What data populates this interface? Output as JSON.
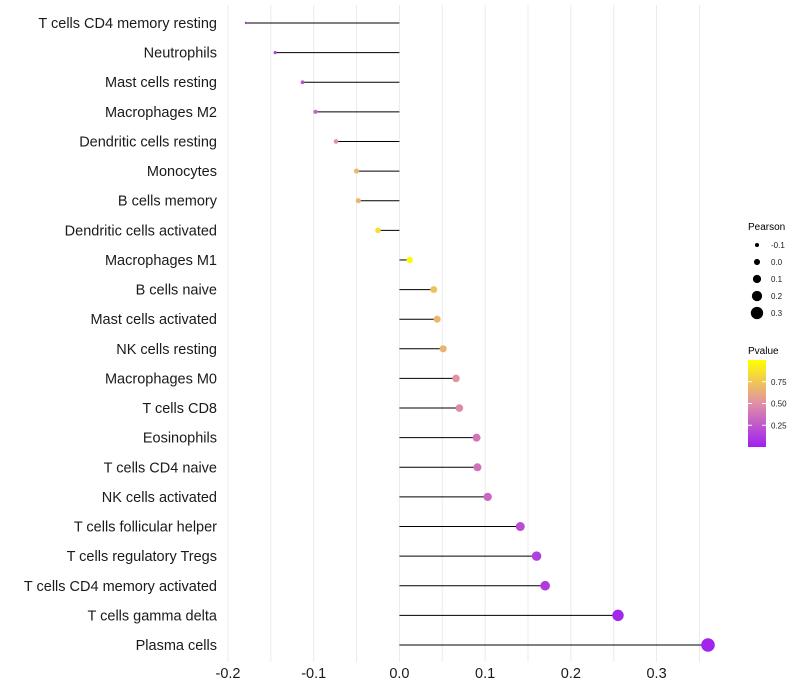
{
  "chart_data": {
    "type": "lollipop",
    "xlim": [
      -0.2,
      0.36
    ],
    "x_ticks": [
      -0.2,
      -0.1,
      0.0,
      0.1,
      0.2,
      0.3
    ],
    "x_tick_labels": [
      "-0.2",
      "-0.1",
      "0.0",
      "0.1",
      "0.2",
      "0.3"
    ],
    "categories": [
      "T cells CD4 memory resting",
      "Neutrophils",
      "Mast cells resting",
      "Macrophages M2",
      "Dendritic cells resting",
      "Monocytes",
      "B cells memory",
      "Dendritic cells activated",
      "Macrophages M1",
      "B cells naive",
      "Mast cells activated",
      "NK cells resting",
      "Macrophages M0",
      "T cells CD8",
      "Eosinophils",
      "T cells CD4 naive",
      "NK cells activated",
      "T cells follicular helper",
      "T cells regulatory  Tregs",
      "T cells CD4 memory activated",
      "T cells gamma delta",
      "Plasma cells"
    ],
    "values": [
      -0.179,
      -0.145,
      -0.113,
      -0.098,
      -0.074,
      -0.05,
      -0.048,
      -0.025,
      0.012,
      0.04,
      0.044,
      0.051,
      0.066,
      0.07,
      0.09,
      0.091,
      0.103,
      0.141,
      0.16,
      0.17,
      0.255,
      0.36
    ],
    "pvalues": [
      0.1,
      0.15,
      0.22,
      0.32,
      0.52,
      0.68,
      0.68,
      0.85,
      0.98,
      0.72,
      0.68,
      0.66,
      0.52,
      0.48,
      0.38,
      0.37,
      0.32,
      0.2,
      0.14,
      0.12,
      0.03,
      0.02
    ],
    "legend_size": {
      "title": "Pearson",
      "labels": [
        "-0.1",
        "0.0",
        "0.1",
        "0.2",
        "0.3"
      ],
      "values": [
        -0.1,
        0.0,
        0.1,
        0.2,
        0.3
      ]
    },
    "legend_color": {
      "title": "Pvalue",
      "labels": [
        "0.75",
        "0.50",
        "0.25"
      ],
      "values": [
        0.75,
        0.5,
        0.25
      ],
      "range": [
        0.0,
        1.0
      ],
      "low_color": "#a020f0",
      "mid_color": "#e08fa8",
      "high_color": "#ffff00"
    },
    "stem_color": "#000000",
    "grid": true,
    "legend_position": "right"
  }
}
